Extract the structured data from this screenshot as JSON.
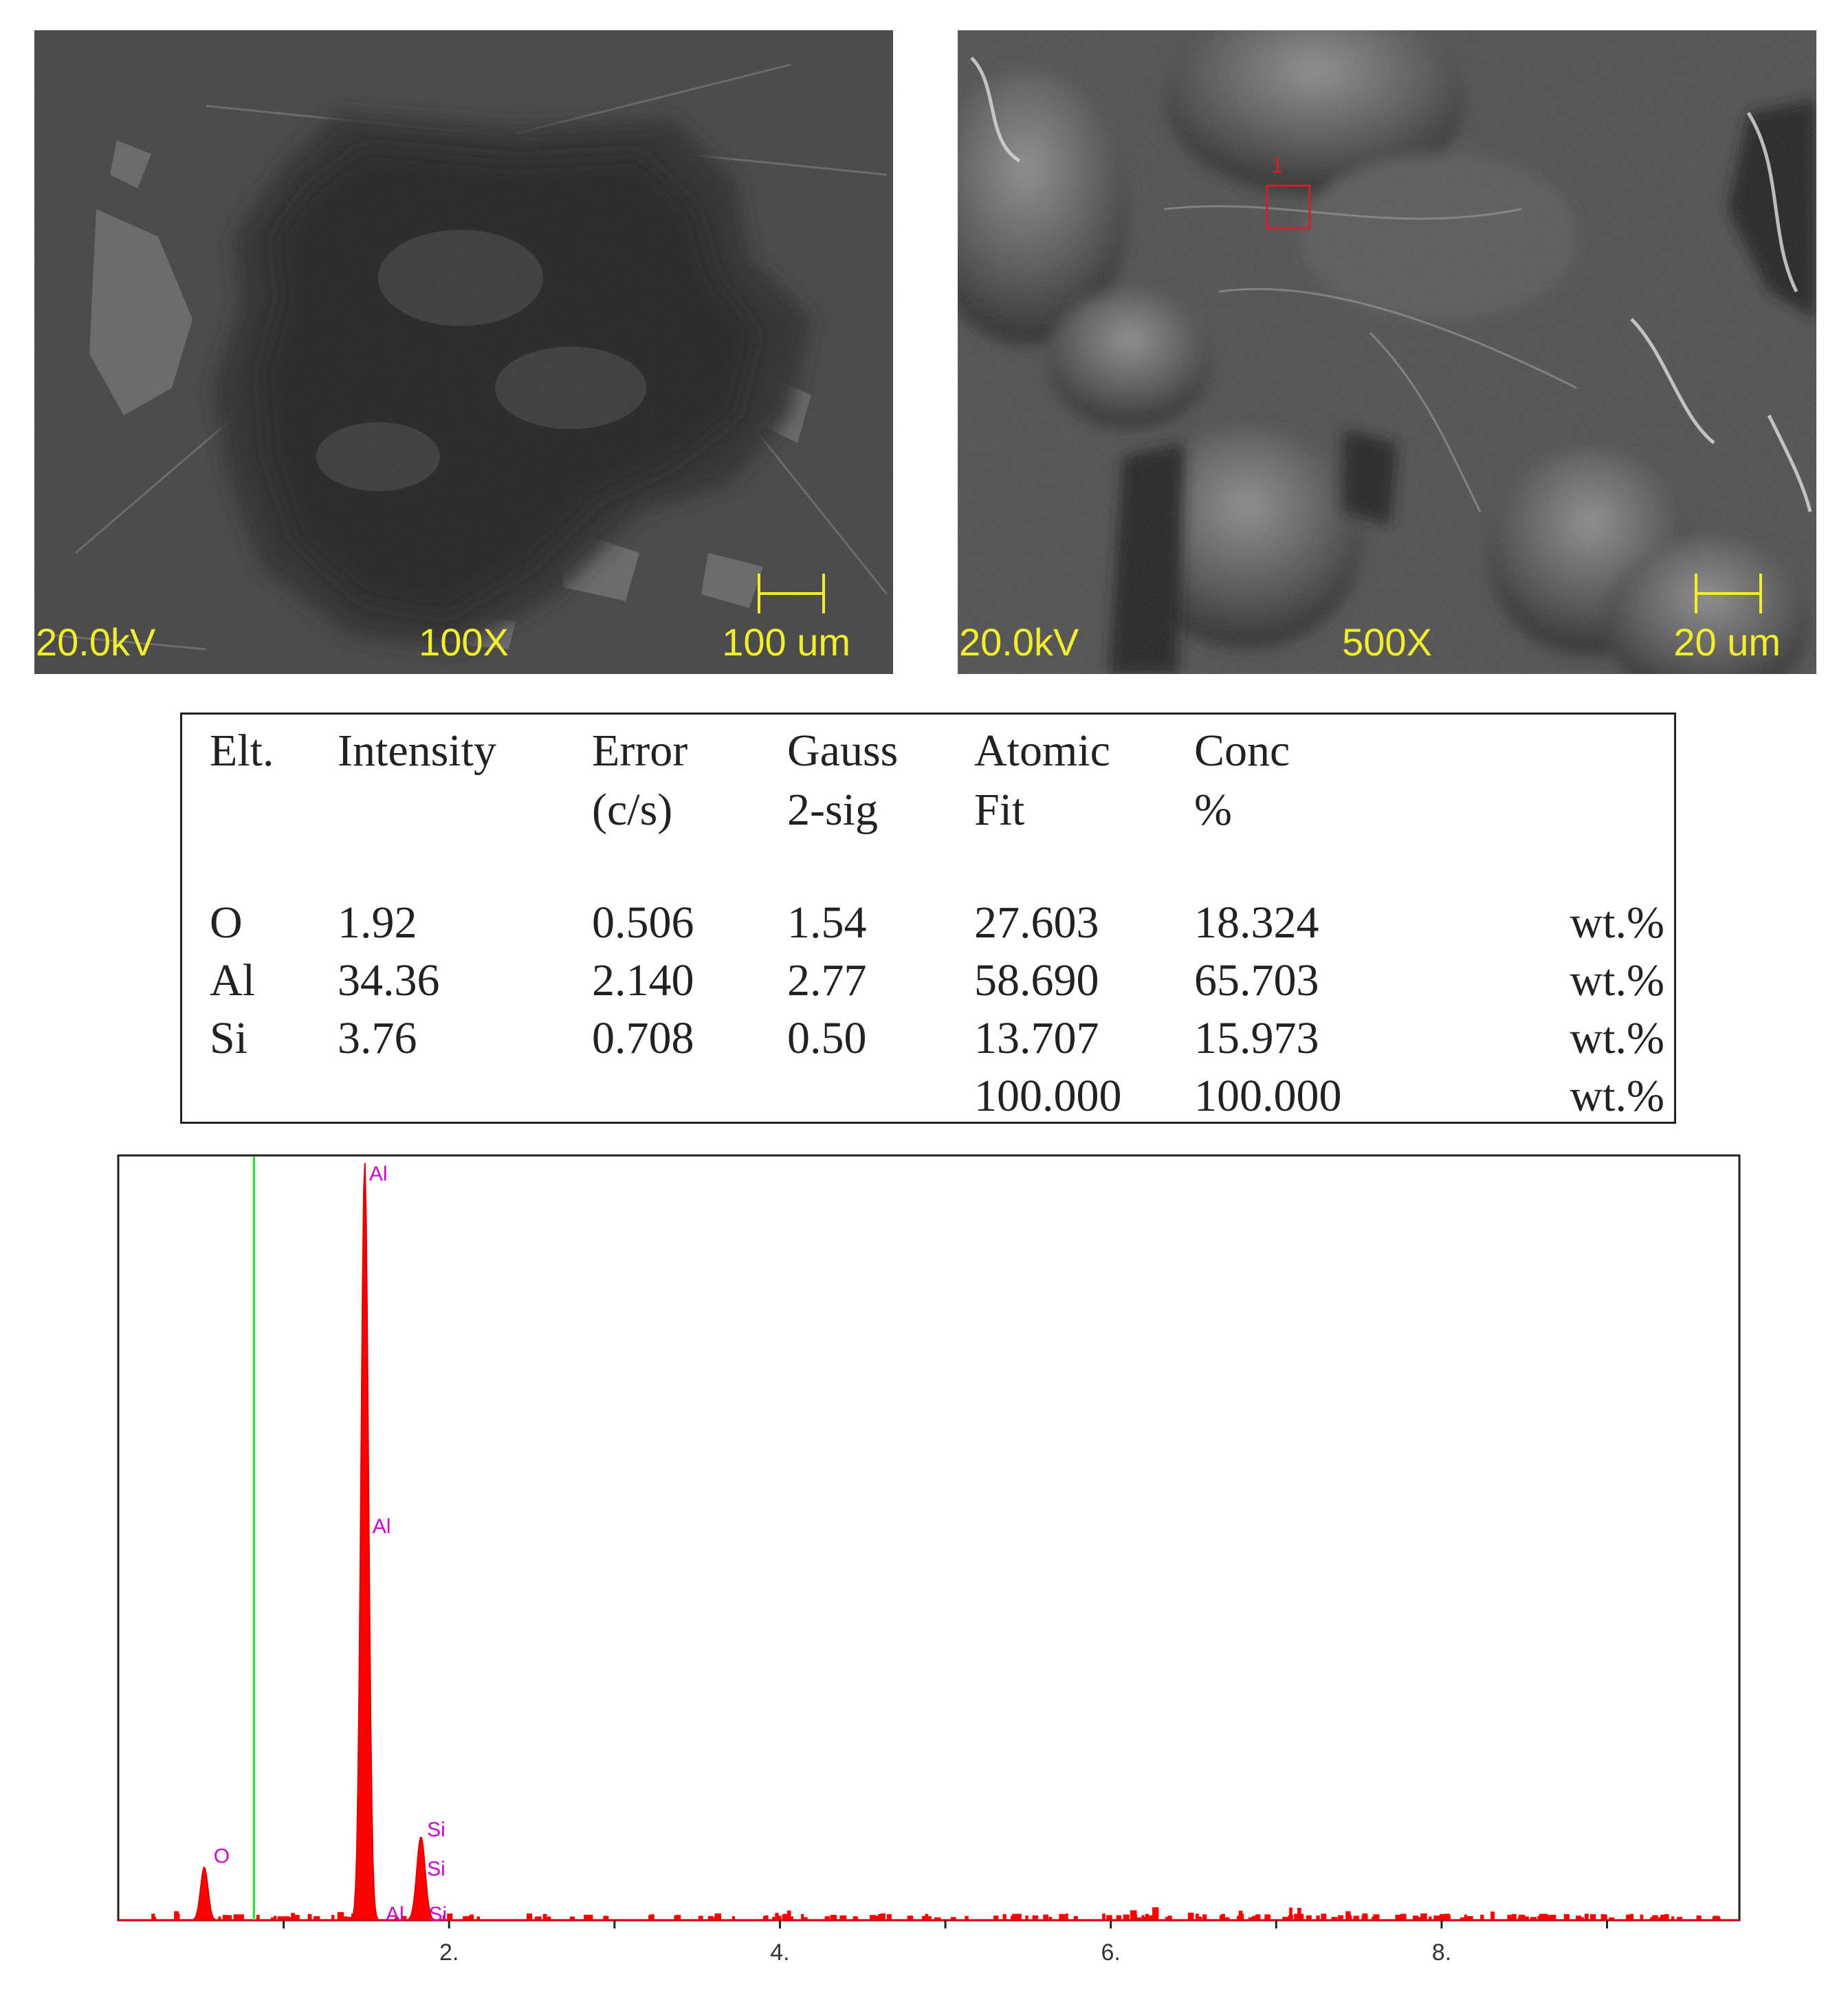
{
  "micrographs": [
    {
      "id": "left",
      "voltage": "20.0kV",
      "magnification": "100X",
      "scale_bar": "100 um"
    },
    {
      "id": "right",
      "voltage": "20.0kV",
      "magnification": "500X",
      "scale_bar": "20 um",
      "region_marker": "1"
    }
  ],
  "colors": {
    "sem_caption": "#f2ee2a",
    "region_marker": "#d0202a",
    "spectrum_fill": "#ff0000",
    "peak_label": "#cc00cc",
    "marker_line": "#22dd22"
  },
  "eds_table": {
    "headers": [
      [
        "Elt."
      ],
      [
        "Intensity"
      ],
      [
        "Error",
        "(c/s)"
      ],
      [
        "Gauss",
        "2-sig"
      ],
      [
        "Atomic",
        "Fit"
      ],
      [
        "Conc",
        "%"
      ]
    ],
    "rows": [
      {
        "element": "O",
        "intensity": "1.92",
        "error": "0.506",
        "gauss": "1.54",
        "atomic": "27.603",
        "conc": "18.324",
        "unit": "wt.%"
      },
      {
        "element": "Al",
        "intensity": "34.36",
        "error": "2.140",
        "gauss": "2.77",
        "atomic": "58.690",
        "conc": "65.703",
        "unit": "wt.%"
      },
      {
        "element": "Si",
        "intensity": "3.76",
        "error": "0.708",
        "gauss": "0.50",
        "atomic": "13.707",
        "conc": "15.973",
        "unit": "wt.%"
      }
    ],
    "total": {
      "atomic": "100.000",
      "conc": "100.000",
      "unit": "wt.%"
    }
  },
  "spectrum": {
    "chart_data": {
      "type": "area",
      "xlim": [
        0,
        9.8
      ],
      "ylim": [
        0,
        1.0
      ],
      "x_ticks": [
        2,
        4,
        6,
        8
      ],
      "x_tick_labels": [
        "2.",
        "4.",
        "6.",
        "8."
      ],
      "marker_line_x": 0.82,
      "peaks": [
        {
          "x": 0.52,
          "height": 0.07,
          "width": 0.022
        },
        {
          "x": 1.49,
          "height": 1.0,
          "width": 0.022
        },
        {
          "x": 1.83,
          "height": 0.11,
          "width": 0.025
        }
      ],
      "peak_labels": [
        {
          "text": "O",
          "x": 0.56,
          "y": 0.085
        },
        {
          "text": "Al",
          "x": 1.5,
          "y": 0.985
        },
        {
          "text": "Al",
          "x": 1.52,
          "y": 0.52
        },
        {
          "text": "Si",
          "x": 1.85,
          "y": 0.12
        },
        {
          "text": "Si",
          "x": 1.85,
          "y": 0.068
        },
        {
          "text": "Al",
          "x": 1.6,
          "y": 0.008
        },
        {
          "text": "Si",
          "x": 1.86,
          "y": 0.008
        }
      ]
    }
  }
}
